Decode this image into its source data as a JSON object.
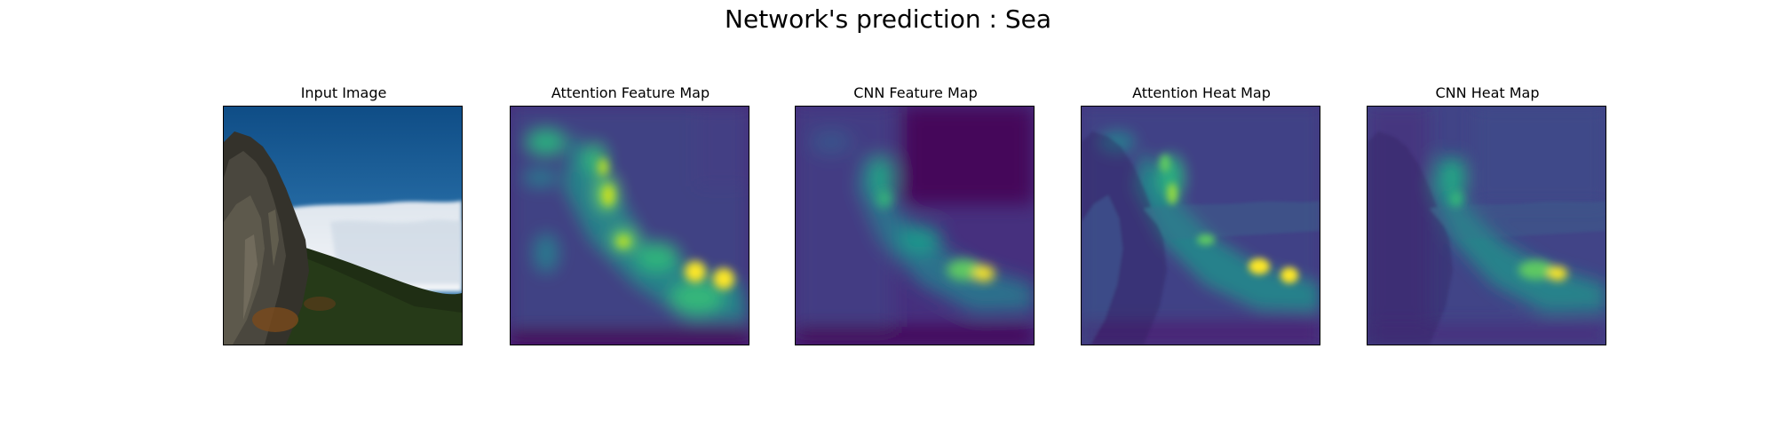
{
  "figure": {
    "title": "Network's prediction : Sea"
  },
  "panels": [
    {
      "title": "Input Image"
    },
    {
      "title": "Attention Feature Map"
    },
    {
      "title": "CNN Feature Map"
    },
    {
      "title": "Attention Heat Map"
    },
    {
      "title": "CNN Heat Map"
    }
  ],
  "colors": {
    "viridis_low": "#440154",
    "viridis_mid_low": "#3b528b",
    "viridis_mid": "#21918c",
    "viridis_mid_high": "#5ec962",
    "viridis_high": "#fde725",
    "sky": "#1b5e98",
    "clouds": "#e6ebf0",
    "rock": "#2b2a25",
    "vegetation": "#1f2f16"
  }
}
